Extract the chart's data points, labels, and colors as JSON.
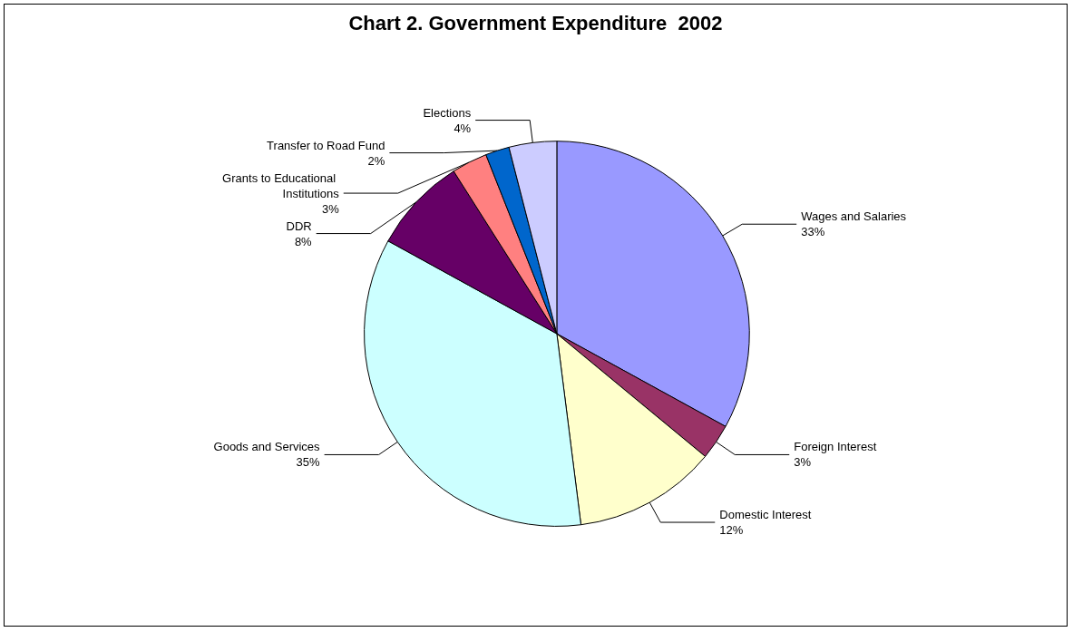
{
  "chart_data": {
    "type": "pie",
    "title": "Chart 2. Government Expenditure  2002",
    "categories": [
      "Wages and Salaries",
      "Foreign Interest",
      "Domestic Interest",
      "Goods and Services",
      "DDR",
      "Grants to Educational Institutions",
      "Transfer to Road Fund",
      "Elections"
    ],
    "values": [
      33,
      3,
      12,
      35,
      8,
      3,
      2,
      4
    ],
    "colors": [
      "#9999ff",
      "#993366",
      "#ffffcc",
      "#ccffff",
      "#660066",
      "#ff8080",
      "#0066cc",
      "#ccccff"
    ],
    "value_labels": [
      "33%",
      "3%",
      "12%",
      "35%",
      "8%",
      "3%",
      "2%",
      "4%"
    ],
    "legend": false
  }
}
